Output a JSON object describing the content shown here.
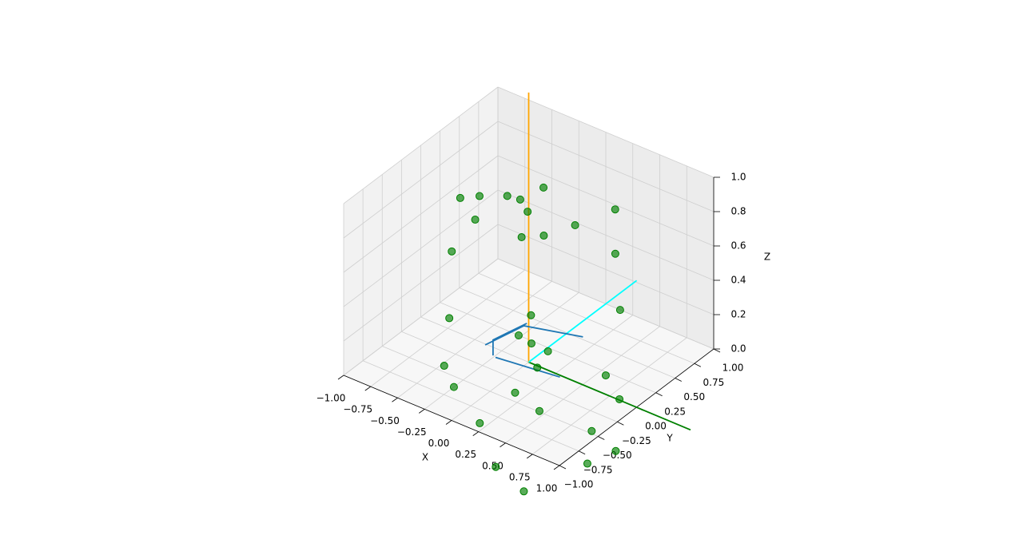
{
  "chart_data": {
    "type": "scatter3d",
    "xlabel": "X",
    "ylabel": "Y",
    "zlabel": "Z",
    "xlim": [
      -1,
      1
    ],
    "ylim": [
      -1,
      1
    ],
    "zlim": [
      0,
      1
    ],
    "xticks": [
      {
        "value": -1,
        "label": "−1.00"
      },
      {
        "value": -0.75,
        "label": "−0.75"
      },
      {
        "value": -0.5,
        "label": "−0.50"
      },
      {
        "value": -0.25,
        "label": "−0.25"
      },
      {
        "value": 0,
        "label": "0.00"
      },
      {
        "value": 0.25,
        "label": "0.25"
      },
      {
        "value": 0.5,
        "label": "0.50"
      },
      {
        "value": 0.75,
        "label": "0.75"
      },
      {
        "value": 1,
        "label": "1.00"
      }
    ],
    "yticks": [
      {
        "value": -1,
        "label": "−1.00"
      },
      {
        "value": -0.75,
        "label": "−0.75"
      },
      {
        "value": -0.5,
        "label": "−0.50"
      },
      {
        "value": -0.25,
        "label": "−0.25"
      },
      {
        "value": 0,
        "label": "0.00"
      },
      {
        "value": 0.25,
        "label": "0.25"
      },
      {
        "value": 0.5,
        "label": "0.50"
      },
      {
        "value": 0.75,
        "label": "0.75"
      },
      {
        "value": 1,
        "label": "1.00"
      }
    ],
    "zticks": [
      {
        "value": 0,
        "label": "0.0"
      },
      0.2,
      0.4,
      0.6,
      0.8,
      {
        "value": 1,
        "label": "1.0"
      }
    ],
    "grid": true,
    "lines": [
      {
        "color": "#ffa500",
        "x": [
          0,
          0
        ],
        "y": [
          0,
          0
        ],
        "z": [
          0,
          1.57
        ]
      },
      {
        "color": "#008000",
        "x": [
          0,
          1.5
        ],
        "y": [
          0,
          0
        ],
        "z": [
          0,
          0
        ]
      },
      {
        "color": "#00ffff",
        "x": [
          0,
          0
        ],
        "y": [
          0,
          1.4
        ],
        "z": [
          0,
          0
        ]
      },
      {
        "color": "#1f77b4",
        "x": [
          -0.26,
          -0.18,
          0.26,
          null,
          -0.1,
          0.17,
          0.44,
          null,
          -0.13,
          -0.13,
          -0.06
        ],
        "y": [
          -0.2,
          0.19,
          0.34,
          null,
          -0.29,
          -0.25,
          -0.21,
          null,
          -0.28,
          -0.28,
          0.06
        ],
        "z": [
          0.1,
          0.1,
          0.1,
          null,
          0.1,
          0.1,
          0.1,
          null,
          0.1,
          0.19,
          0.19
        ]
      }
    ],
    "points": {
      "color": "#008000",
      "x": [
        -0.52,
        -0.62,
        -0.36,
        -0.52,
        -0.25,
        -0.07,
        -0.11,
        0.28,
        0.53,
        0.61,
        0.04,
        -0.08,
        -0.22,
        -0.34,
        -0.25,
        0.16,
        0.19,
        0.45,
        0.36,
        0.72,
        0.92,
        0.88,
        0.97,
        0.7,
        0.54,
        -0.55,
        0.95,
        0,
        0.3,
        0.05,
        0.23,
        0.14
      ],
      "y": [
        0.09,
        -0.02,
        -0.19,
        -0.27,
        0.24,
        0.29,
        0.14,
        0.21,
        0.38,
        0.27,
        0.14,
        0.02,
        0.03,
        -0.62,
        -0.62,
        -0.4,
        -0.9,
        -0.49,
        -0.93,
        -1.07,
        -0.47,
        -0.47,
        -0.18,
        0.02,
        0.43,
        -0.26,
        -0.2,
        -0.13,
        -0.17,
        -0.04,
        -0.21,
        -0.16
      ],
      "z": [
        0.8,
        0.8,
        0.8,
        0.6,
        0.8,
        0.9,
        0.8,
        0.8,
        0.9,
        0.7,
        0.7,
        0.7,
        0.9,
        0.1,
        0,
        0,
        0,
        0,
        -0.2,
        -0.2,
        0,
        -0.2,
        0.1,
        0.1,
        0.3,
        0.2,
        -0.2,
        0.2,
        0.2,
        0.3,
        0.1,
        0.2
      ]
    }
  }
}
